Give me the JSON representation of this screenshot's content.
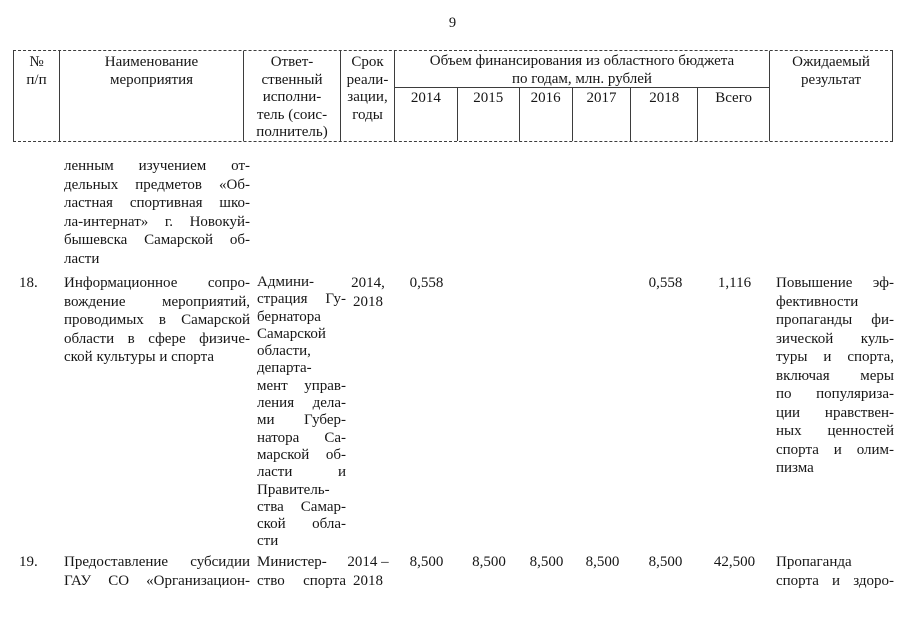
{
  "page": {
    "number": "9"
  },
  "table": {
    "header": {
      "col_num": [
        "№",
        "п/п"
      ],
      "col_name": [
        "Наименование",
        "мероприятия"
      ],
      "col_executor": [
        "Ответ-",
        "ственный",
        "исполни-",
        "тель (соис-",
        "полнитель)"
      ],
      "col_term": [
        "Срок",
        "реали-",
        "зации,",
        "годы"
      ],
      "financing_title": [
        "Объем финансирования из областного бюджета",
        "по годам, млн. рублей"
      ],
      "years": [
        "2014",
        "2015",
        "2016",
        "2017",
        "2018",
        "Всего"
      ],
      "col_result": [
        "Ожидаемый",
        "результат"
      ]
    },
    "continuation_text": [
      "ленным   изучением   от-",
      "дельных предметов «Об-",
      "ластная спортивная шко-",
      "ла-интернат» г. Новокуй-",
      "бышевска Самарской об-",
      "ласти"
    ],
    "rows": [
      {
        "num": "18.",
        "name": [
          "Информационное сопро-",
          "вождение мероприятий,",
          "проводимых в Самарской",
          "области в сфере физиче-",
          "ской культуры и спорта"
        ],
        "executor": [
          "Админи-",
          "страция Гу-",
          "бернатора",
          "Самарской",
          "области,",
          "департа-",
          "мент управ-",
          "ления дела-",
          "ми Губер-",
          "натора Са-",
          "марской об-",
          "ласти и",
          "Правитель-",
          "ства Самар-",
          "ской обла-",
          "сти"
        ],
        "term": [
          "2014,",
          "2018"
        ],
        "values": {
          "y2014": "0,558",
          "y2015": "",
          "y2016": "",
          "y2017": "",
          "y2018": "0,558",
          "total": "1,116"
        },
        "result": [
          "Повышение эф-",
          "фективности",
          "пропаганды фи-",
          "зической куль-",
          "туры и спорта,",
          "включая меры",
          "по популяриза-",
          "ции нравствен-",
          "ных ценностей",
          "спорта и олим-",
          "пизма"
        ]
      },
      {
        "num": "19.",
        "name": [
          "Предоставление субсидии",
          "ГАУ СО «Организацион-"
        ],
        "executor": [
          "Министер-",
          "ство спорта"
        ],
        "term": [
          "2014 –",
          "2018"
        ],
        "values": {
          "y2014": "8,500",
          "y2015": "8,500",
          "y2016": "8,500",
          "y2017": "8,500",
          "y2018": "8,500",
          "total": "42,500"
        },
        "result": [
          "Пропаганда",
          "спорта и здоро-"
        ]
      }
    ]
  }
}
